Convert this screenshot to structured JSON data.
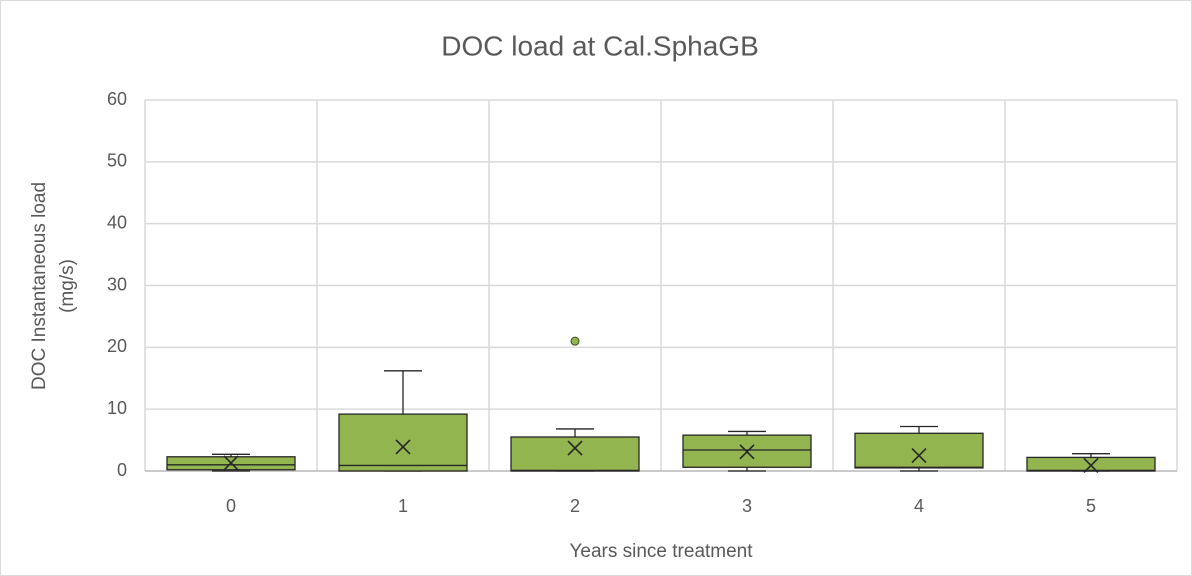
{
  "chart_data": {
    "type": "box",
    "title": "DOC load at Cal.SphaGB",
    "x_label": "Years since treatment",
    "y_label": [
      "DOC Instantaneous load",
      "(mg/s)"
    ],
    "categories": [
      "0",
      "1",
      "2",
      "3",
      "4",
      "5"
    ],
    "boxes": [
      {
        "min": 0,
        "q1": 0.2,
        "median": 1,
        "q3": 2.3,
        "max": 2.7,
        "mean": 1.3
      },
      {
        "min": 0,
        "q1": 0,
        "median": 0.9,
        "q3": 9.2,
        "max": 16.2,
        "mean": 3.9
      },
      {
        "min": 0,
        "q1": 0,
        "median": 0.1,
        "q3": 5.5,
        "max": 6.8,
        "mean": 3.7,
        "outliers": [
          21
        ]
      },
      {
        "min": 0,
        "q1": 0.6,
        "median": 3.4,
        "q3": 5.8,
        "max": 6.4,
        "mean": 3.1
      },
      {
        "min": 0,
        "q1": 0.5,
        "median": 0.6,
        "q3": 6.1,
        "max": 7.2,
        "mean": 2.5
      },
      {
        "min": 0,
        "q1": 0,
        "median": 0.1,
        "q3": 2.2,
        "max": 2.8,
        "mean": 0.9
      }
    ],
    "color": "#92b550",
    "ylim": [
      0,
      60
    ],
    "yticks": [
      0,
      10,
      20,
      30,
      40,
      50,
      60
    ],
    "grid": true
  }
}
